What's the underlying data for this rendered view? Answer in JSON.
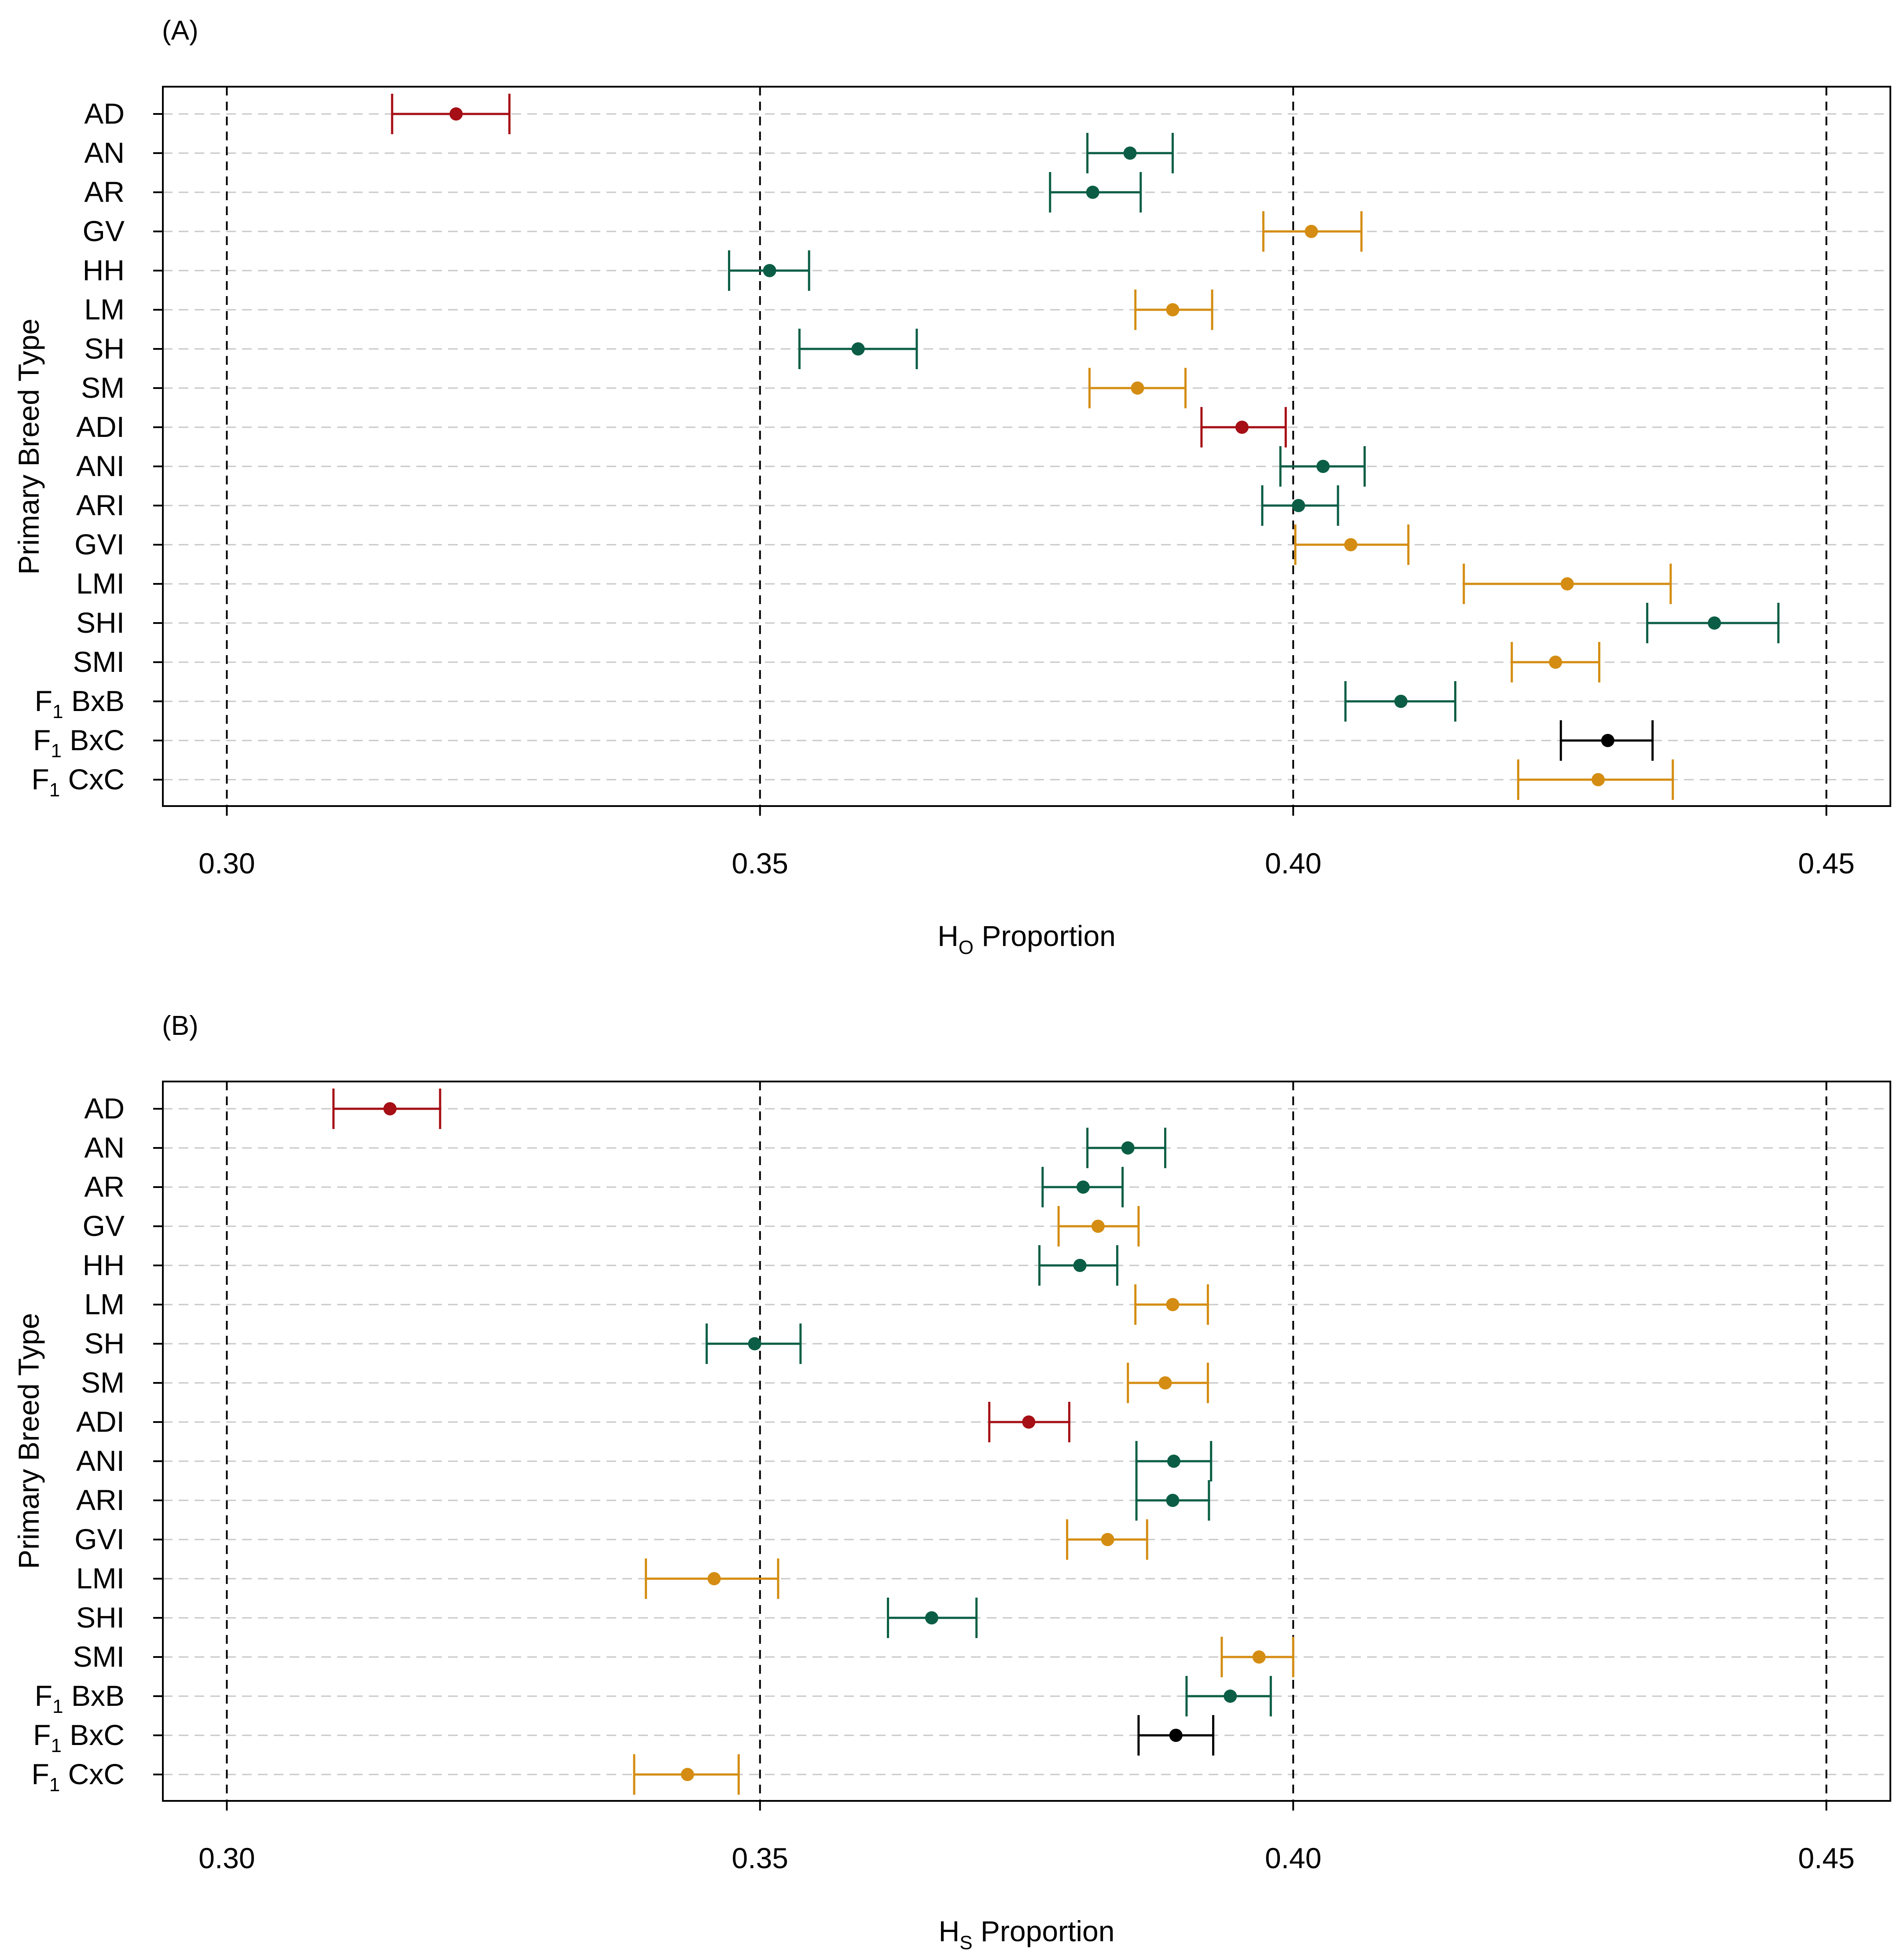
{
  "colors": {
    "red": "#A50F15",
    "green": "#0B5E45",
    "orange": "#D48D12",
    "black": "#000000",
    "grid": "#C8C8C8"
  },
  "chart_data": [
    {
      "type": "scatter",
      "panel_label": "(A)",
      "ylabel": "Primary Breed Type",
      "xlabel": {
        "main": "H",
        "subscript": "O",
        "suffix": " Proportion"
      },
      "xlim": [
        0.294,
        0.456
      ],
      "xticks": [
        0.3,
        0.35,
        0.4,
        0.45
      ],
      "xtick_labels": [
        "0.30",
        "0.35",
        "0.40",
        "0.45"
      ],
      "vlines": [
        0.3,
        0.35,
        0.4,
        0.45
      ],
      "grid": "horizontal dashed",
      "points": [
        {
          "label": "AD",
          "mean": 0.3215,
          "lo": 0.3155,
          "hi": 0.3265,
          "group": "red"
        },
        {
          "label": "AN",
          "mean": 0.3847,
          "lo": 0.3807,
          "hi": 0.3887,
          "group": "green"
        },
        {
          "label": "AR",
          "mean": 0.3812,
          "lo": 0.3772,
          "hi": 0.3857,
          "group": "green"
        },
        {
          "label": "GV",
          "mean": 0.4017,
          "lo": 0.3972,
          "hi": 0.4064,
          "group": "orange"
        },
        {
          "label": "HH",
          "mean": 0.3509,
          "lo": 0.3471,
          "hi": 0.3546,
          "group": "green"
        },
        {
          "label": "LM",
          "mean": 0.3887,
          "lo": 0.3852,
          "hi": 0.3924,
          "group": "orange"
        },
        {
          "label": "SH",
          "mean": 0.3592,
          "lo": 0.3537,
          "hi": 0.3647,
          "group": "green"
        },
        {
          "label": "SM",
          "mean": 0.3854,
          "lo": 0.3809,
          "hi": 0.3899,
          "group": "orange"
        },
        {
          "label": "ADI",
          "mean": 0.3952,
          "lo": 0.3914,
          "hi": 0.3993,
          "group": "red"
        },
        {
          "label": "ANI",
          "mean": 0.4028,
          "lo": 0.3988,
          "hi": 0.4067,
          "group": "green"
        },
        {
          "label": "ARI",
          "mean": 0.4005,
          "lo": 0.3971,
          "hi": 0.4042,
          "group": "green"
        },
        {
          "label": "GVI",
          "mean": 0.4054,
          "lo": 0.4002,
          "hi": 0.4108,
          "group": "orange"
        },
        {
          "label": "LMI",
          "mean": 0.4257,
          "lo": 0.416,
          "hi": 0.4354,
          "group": "orange"
        },
        {
          "label": "SHI",
          "mean": 0.4395,
          "lo": 0.4332,
          "hi": 0.4455,
          "group": "green"
        },
        {
          "label": "SMI",
          "mean": 0.4246,
          "lo": 0.4205,
          "hi": 0.4287,
          "group": "orange"
        },
        {
          "label": "F1 BxB",
          "main": "F",
          "sub": "1",
          "rest": " BxB",
          "mean": 0.4101,
          "lo": 0.4049,
          "hi": 0.4152,
          "group": "green"
        },
        {
          "label": "F1 BxC",
          "main": "F",
          "sub": "1",
          "rest": " BxC",
          "mean": 0.4295,
          "lo": 0.4251,
          "hi": 0.4337,
          "group": "black"
        },
        {
          "label": "F1 CxC",
          "main": "F",
          "sub": "1",
          "rest": " CxC",
          "mean": 0.4286,
          "lo": 0.4211,
          "hi": 0.4356,
          "group": "orange"
        }
      ]
    },
    {
      "type": "scatter",
      "panel_label": "(B)",
      "ylabel": "Primary Breed Type",
      "xlabel": {
        "main": "H",
        "subscript": "S",
        "suffix": " Proportion"
      },
      "xlim": [
        0.294,
        0.456
      ],
      "xticks": [
        0.3,
        0.35,
        0.4,
        0.45
      ],
      "xtick_labels": [
        "0.30",
        "0.35",
        "0.40",
        "0.45"
      ],
      "vlines": [
        0.3,
        0.35,
        0.4,
        0.45
      ],
      "grid": "horizontal dashed",
      "points": [
        {
          "label": "AD",
          "mean": 0.3153,
          "lo": 0.31,
          "hi": 0.32,
          "group": "red"
        },
        {
          "label": "AN",
          "mean": 0.3845,
          "lo": 0.3807,
          "hi": 0.388,
          "group": "green"
        },
        {
          "label": "AR",
          "mean": 0.3803,
          "lo": 0.3765,
          "hi": 0.384,
          "group": "green"
        },
        {
          "label": "GV",
          "mean": 0.3817,
          "lo": 0.378,
          "hi": 0.3855,
          "group": "orange"
        },
        {
          "label": "HH",
          "mean": 0.38,
          "lo": 0.3762,
          "hi": 0.3835,
          "group": "green"
        },
        {
          "label": "LM",
          "mean": 0.3887,
          "lo": 0.3852,
          "hi": 0.392,
          "group": "orange"
        },
        {
          "label": "SH",
          "mean": 0.3495,
          "lo": 0.345,
          "hi": 0.3538,
          "group": "green"
        },
        {
          "label": "SM",
          "mean": 0.388,
          "lo": 0.3845,
          "hi": 0.392,
          "group": "orange"
        },
        {
          "label": "ADI",
          "mean": 0.3752,
          "lo": 0.3715,
          "hi": 0.379,
          "group": "red"
        },
        {
          "label": "ANI",
          "mean": 0.3888,
          "lo": 0.3853,
          "hi": 0.3923,
          "group": "green"
        },
        {
          "label": "ARI",
          "mean": 0.3887,
          "lo": 0.3853,
          "hi": 0.3921,
          "group": "green"
        },
        {
          "label": "GVI",
          "mean": 0.3826,
          "lo": 0.3788,
          "hi": 0.3863,
          "group": "orange"
        },
        {
          "label": "LMI",
          "mean": 0.3457,
          "lo": 0.3393,
          "hi": 0.3517,
          "group": "orange"
        },
        {
          "label": "SHI",
          "mean": 0.3661,
          "lo": 0.362,
          "hi": 0.3703,
          "group": "green"
        },
        {
          "label": "SMI",
          "mean": 0.3968,
          "lo": 0.3933,
          "hi": 0.4,
          "group": "orange"
        },
        {
          "label": "F1 BxB",
          "main": "F",
          "sub": "1",
          "rest": " BxB",
          "mean": 0.3941,
          "lo": 0.39,
          "hi": 0.3979,
          "group": "green"
        },
        {
          "label": "F1 BxC",
          "main": "F",
          "sub": "1",
          "rest": " BxC",
          "mean": 0.389,
          "lo": 0.3855,
          "hi": 0.3925,
          "group": "black"
        },
        {
          "label": "F1 CxC",
          "main": "F",
          "sub": "1",
          "rest": " CxC",
          "mean": 0.3432,
          "lo": 0.3382,
          "hi": 0.348,
          "group": "orange"
        }
      ]
    }
  ]
}
